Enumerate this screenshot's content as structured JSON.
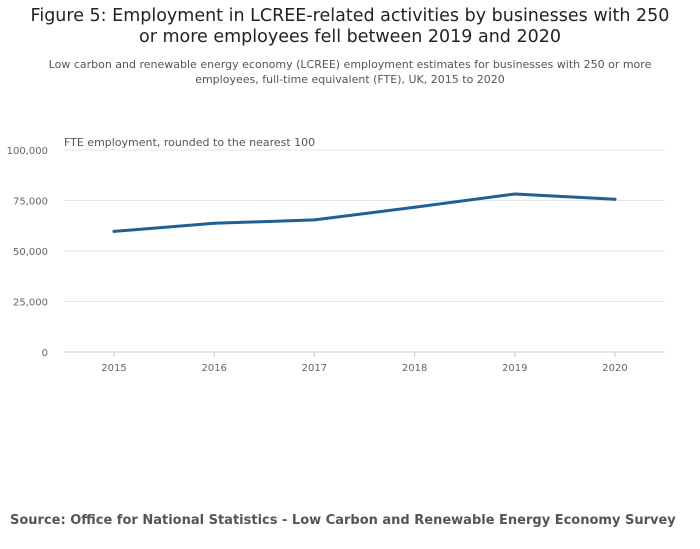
{
  "title": "Figure 5: Employment in LCREE-related activities by businesses with 250 or more employees fell between 2019 and 2020",
  "subtitle": "Low carbon and renewable energy economy (LCREE) employment estimates for businesses with 250 or more employees, full-time equivalent (FTE), UK, 2015 to 2020",
  "source": "Source: Office for National Statistics - Low Carbon and Renewable Energy Economy Survey",
  "colors": {
    "line": "#206095",
    "grid": "#e6e6e6",
    "axis": "#c8c8d8",
    "tick_text": "#666666"
  },
  "chart_data": {
    "type": "line",
    "ylabel": "FTE employment, rounded to the nearest 100",
    "x": [
      "2015",
      "2016",
      "2017",
      "2018",
      "2019",
      "2020"
    ],
    "series": [
      {
        "values": [
          59700,
          63700,
          65400,
          71700,
          78200,
          75600
        ]
      }
    ],
    "ylim": [
      0,
      100000
    ],
    "yticks": [
      "0",
      "25,000",
      "50,000",
      "75,000",
      "100,000"
    ],
    "grid": true,
    "legend": "none"
  }
}
